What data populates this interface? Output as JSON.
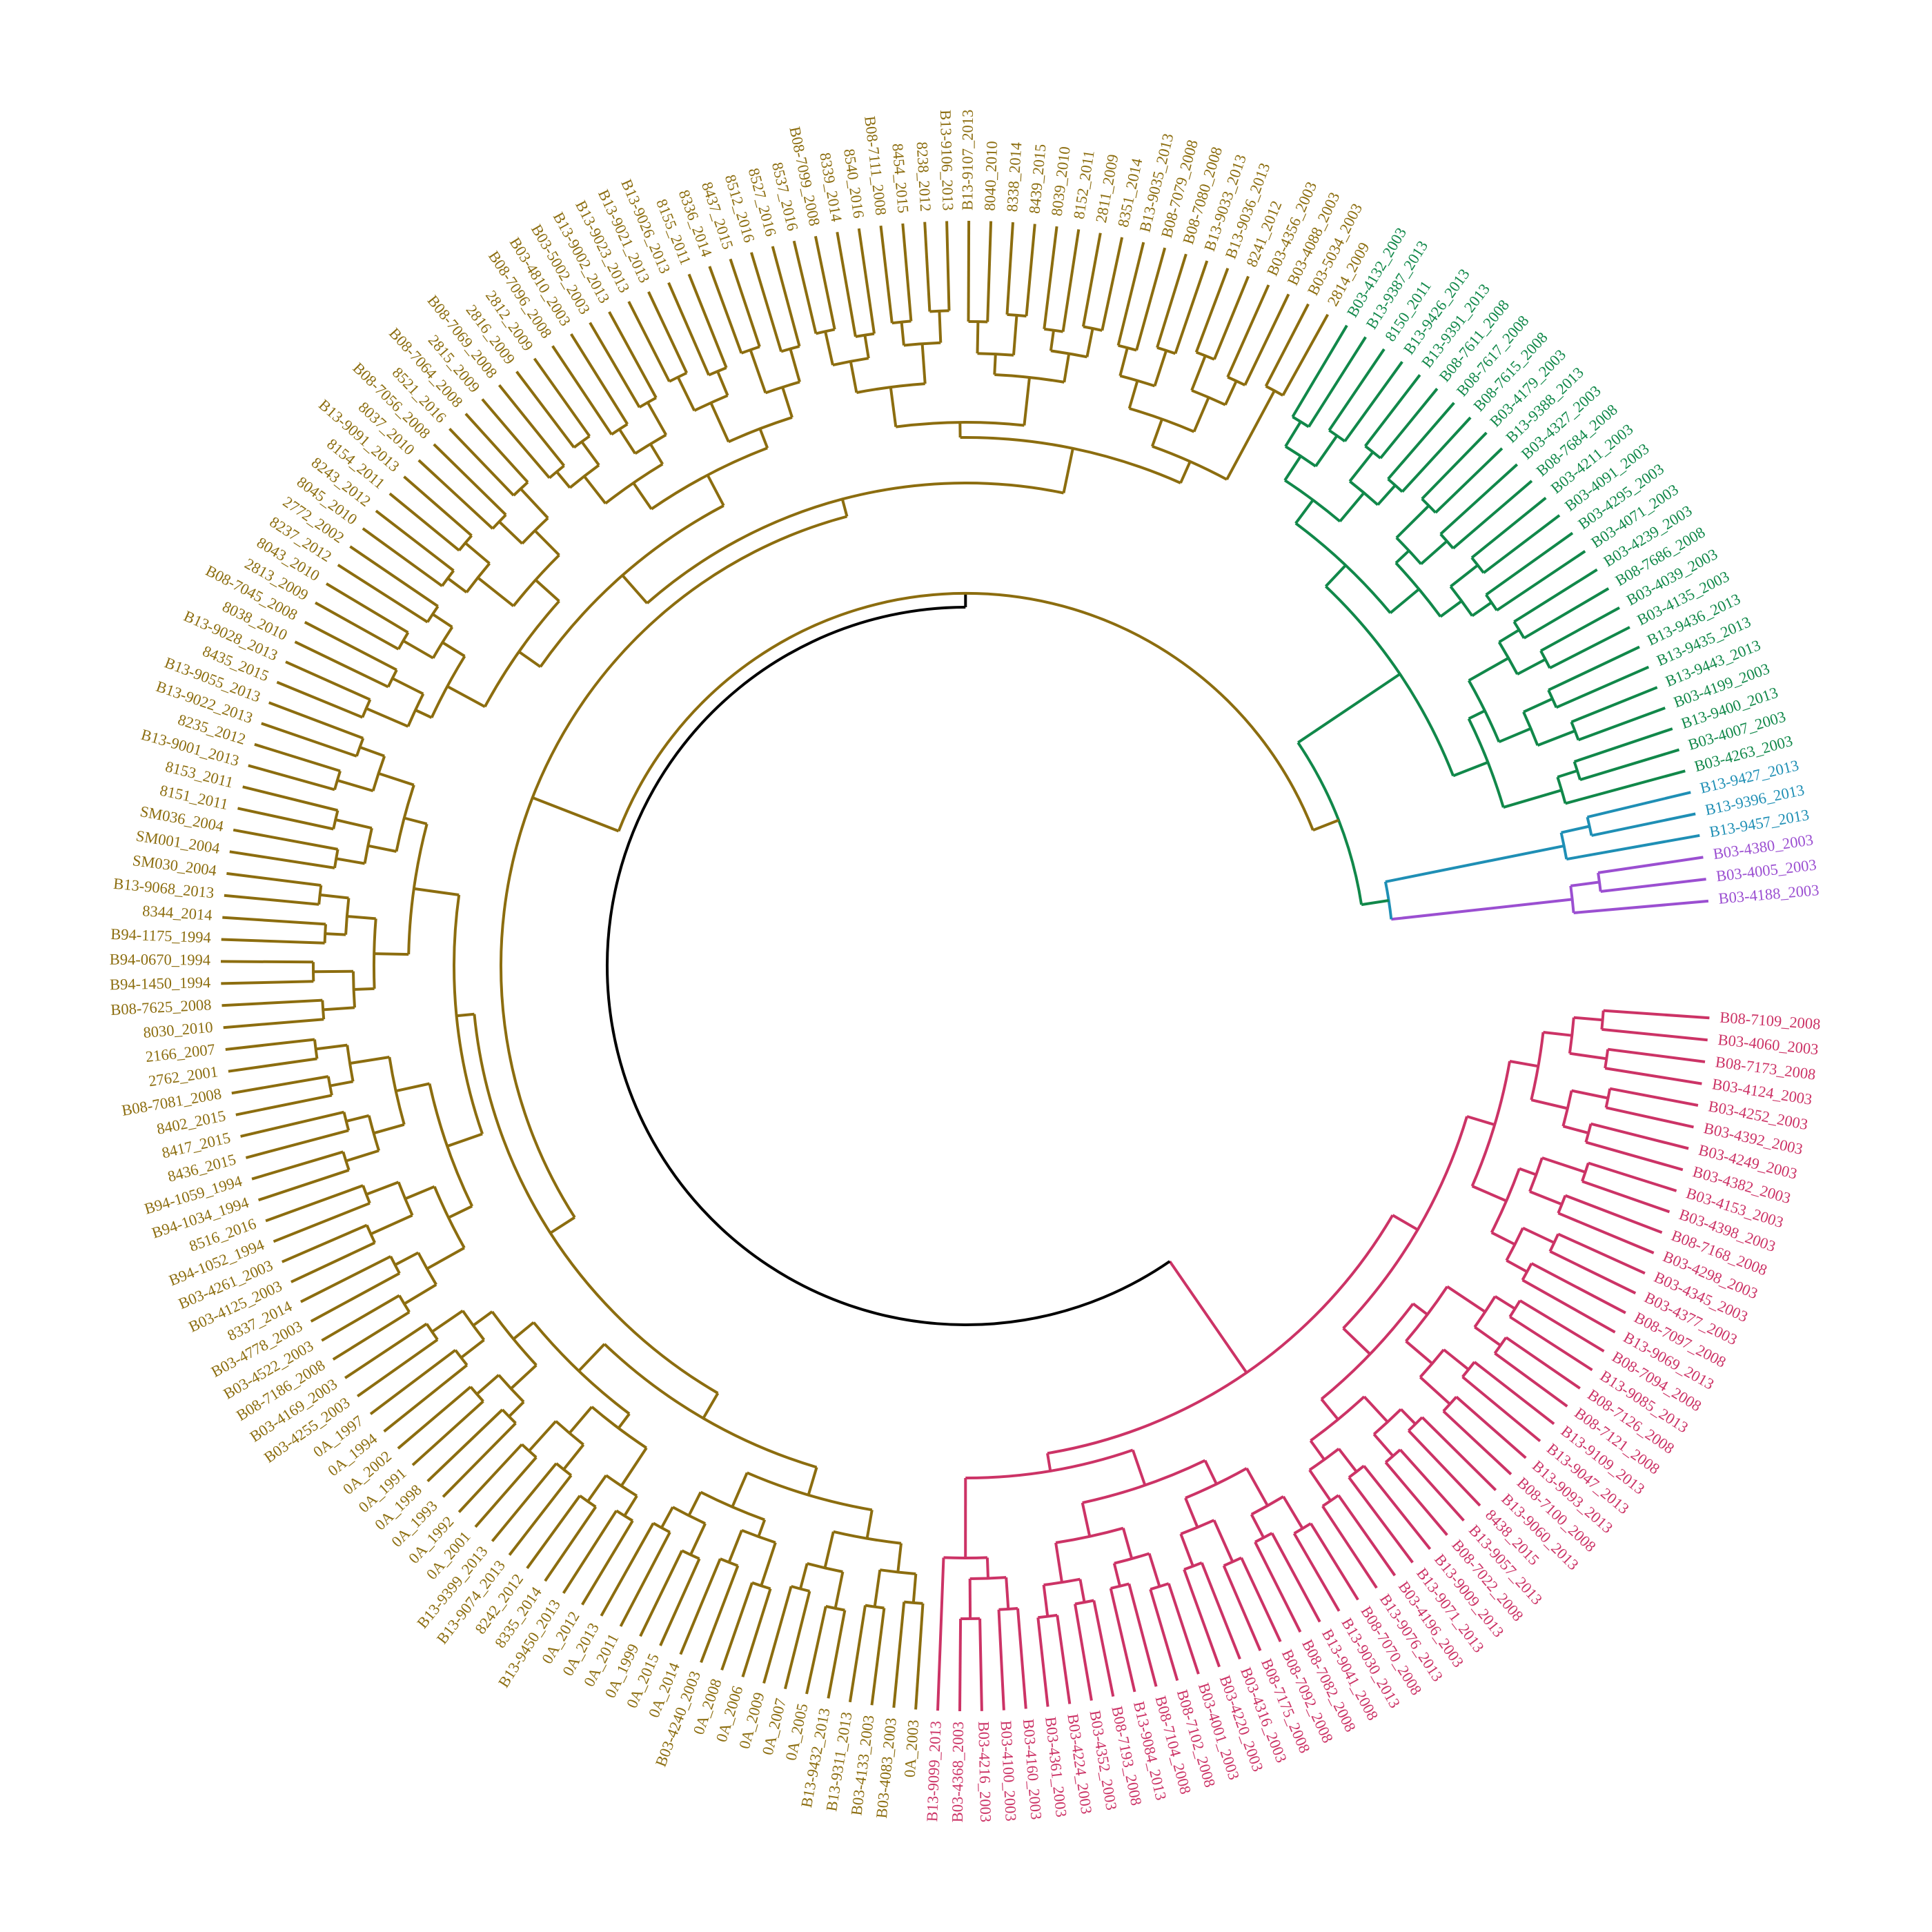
{
  "tree": {
    "root_color": "#000000",
    "clades": [
      {
        "name": "pink",
        "color": "#cc3366",
        "tips": [
          "B08-7109_2008",
          "B03-4060_2003",
          "B08-7173_2008",
          "B03-4124_2003",
          "B03-4252_2003",
          "B03-4392_2003",
          "B03-4249_2003",
          "B03-4382_2003",
          "B03-4153_2003",
          "B03-4398_2003",
          "B08-7168_2008",
          "B03-4298_2003",
          "B03-4345_2003",
          "B03-4377_2003",
          "B08-7097_2008",
          "B13-9069_2013",
          "B08-7094_2008",
          "B13-9085_2013",
          "B08-7126_2008",
          "B08-7121_2008",
          "B13-9109_2013",
          "B13-9047_2013",
          "B13-9093_2013",
          "B08-7100_2008",
          "B13-9060_2013",
          "8438_2015",
          "B13-9057_2013",
          "B08-7022_2008",
          "B13-9009_2013",
          "B13-9071_2013",
          "B03-4196_2003",
          "B13-9076_2013",
          "B08-7070_2008",
          "B13-9030_2013",
          "B13-9041_2008",
          "B08-7082_2008",
          "B08-7092_2008",
          "B08-7175_2008",
          "B03-4316_2003",
          "B03-4220_2003",
          "B03-4001_2003",
          "B08-7102_2008",
          "B08-7104_2008",
          "B13-9084_2013",
          "B08-7193_2008",
          "B03-4352_2003",
          "B03-4224_2003",
          "B03-4361_2003",
          "B03-4160_2003",
          "B03-4100_2003",
          "B03-4216_2003",
          "B03-4368_2003",
          "B13-9099_2013"
        ]
      },
      {
        "name": "olive",
        "color": "#8c6d0f",
        "tips": [
          "0A_2003",
          "B03-4083_2003",
          "B03-4133_2003",
          "B13-9311_2013",
          "B13-9432_2013",
          "0A_2005",
          "0A_2007",
          "0A_2009",
          "0A_2006",
          "0A_2008",
          "B03-4240_2003",
          "0A_2014",
          "0A_2015",
          "0A_1999",
          "0A_2011",
          "0A_2013",
          "0A_2012",
          "B13-9450_2013",
          "8335_2014",
          "8242_2012",
          "B13-9074_2013",
          "B13-9399_2013",
          "0A_2001",
          "0A_1992",
          "0A_1993",
          "0A_1998",
          "0A_1991",
          "0A_2002",
          "0A_1994",
          "0A_1997",
          "B03-4255_2003",
          "B03-4169_2003",
          "B08-7186_2008",
          "B03-4522_2003",
          "B03-4778_2003",
          "8337_2014",
          "B03-4125_2003",
          "B03-4261_2003",
          "B94-1052_1994",
          "8516_2016",
          "B94-1034_1994",
          "B94-1059_1994",
          "8436_2015",
          "8417_2015",
          "8402_2015",
          "B08-7081_2008",
          "2762_2001",
          "2166_2007",
          "8030_2010",
          "B08-7625_2008",
          "B94-1450_1994",
          "B94-0670_1994",
          "B94-1175_1994",
          "8344_2014",
          "B13-9068_2013",
          "SM030_2004",
          "SM001_2004",
          "SM036_2004",
          "8151_2011",
          "8153_2011",
          "B13-9001_2013",
          "8235_2012",
          "B13-9022_2013",
          "B13-9055_2013",
          "8435_2015",
          "B13-9028_2013",
          "8038_2010",
          "B08-7045_2008",
          "2813_2009",
          "8043_2010",
          "8237_2012",
          "2772_2002",
          "8045_2010",
          "8243_2012",
          "8154_2011",
          "B13-9091_2013",
          "8037_2010",
          "B08-7056_2008",
          "8521_2016",
          "B08-7064_2008",
          "2815_2009",
          "B08-7069_2008",
          "2816_2009",
          "2812_2009",
          "B08-7096_2008",
          "B03-4810_2003",
          "B03-5002_2003",
          "B13-9002_2013",
          "B13-9023_2013",
          "B13-9021_2013",
          "B13-9026_2013",
          "8155_2011",
          "8336_2014",
          "8437_2015",
          "8512_2016",
          "8527_2016",
          "8537_2016",
          "B08-7099_2008",
          "8339_2014",
          "8540_2016",
          "B08-7111_2008",
          "8454_2015",
          "8238_2012",
          "B13-9106_2013",
          "B13-9107_2013",
          "8040_2010",
          "8338_2014",
          "8439_2015",
          "8039_2010",
          "8152_2011",
          "2811_2009",
          "8351_2014",
          "B13-9035_2013",
          "B08-7079_2008",
          "B08-7080_2008",
          "B13-9033_2013",
          "B13-9036_2013",
          "8241_2012",
          "B03-4356_2003",
          "B03-4088_2003",
          "B03-5034_2003",
          "2814_2009"
        ]
      },
      {
        "name": "green",
        "color": "#11884a",
        "tips": [
          "B03-4132_2003",
          "B13-9387_2013",
          "8150_2011",
          "B13-9426_2013",
          "B13-9391_2013",
          "B08-7611_2008",
          "B08-7617_2008",
          "B08-7615_2008",
          "B03-4179_2003",
          "B13-9388_2013",
          "B03-4327_2003",
          "B08-7684_2008",
          "B03-4211_2003",
          "B03-4091_2003",
          "B03-4295_2003",
          "B03-4071_2003",
          "B03-4239_2003",
          "B08-7686_2008",
          "B03-4039_2003",
          "B03-4135_2003",
          "B13-9436_2013",
          "B13-9435_2013",
          "B13-9443_2013",
          "B03-4199_2003",
          "B13-9400_2013",
          "B03-4007_2003",
          "B03-4263_2003"
        ]
      },
      {
        "name": "teal",
        "color": "#1f8fb5",
        "tips": [
          "B13-9427_2013",
          "B13-9396_2013",
          "B13-9457_2013"
        ]
      },
      {
        "name": "purple",
        "color": "#9b4fd1",
        "tips": [
          "B03-4380_2003",
          "B03-4005_2003",
          "B03-4188_2003"
        ]
      }
    ]
  }
}
